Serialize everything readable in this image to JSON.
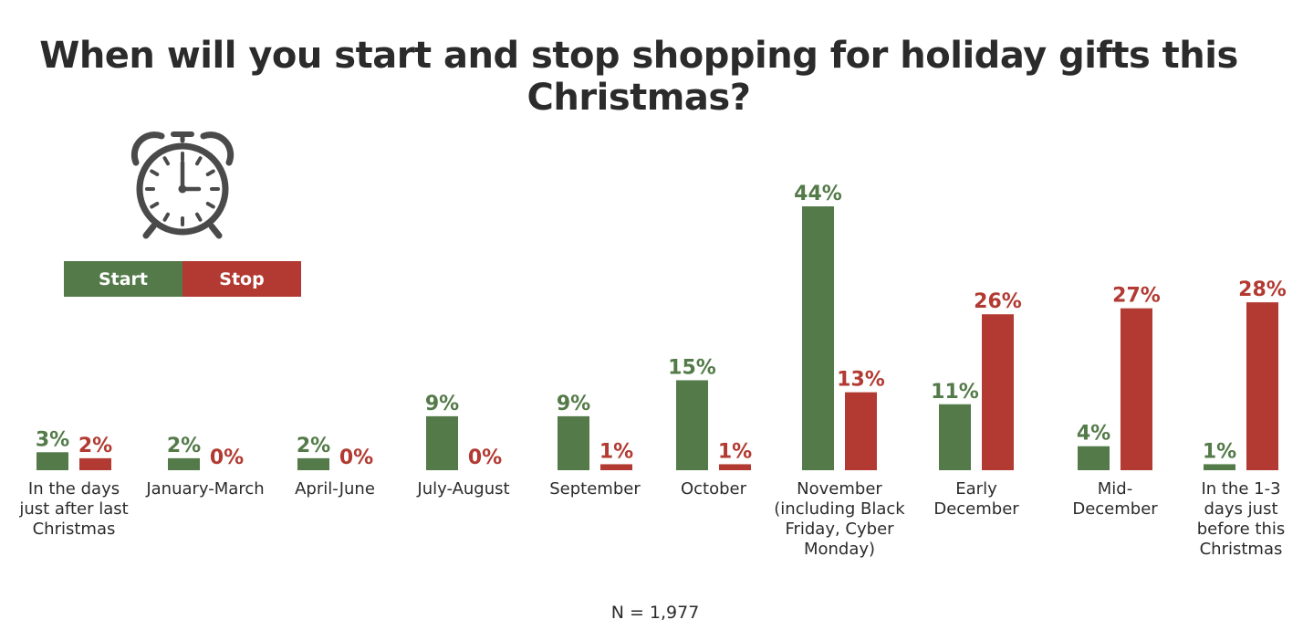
{
  "title": "When will you start and stop shopping for holiday gifts this Christmas?",
  "legend": [
    {
      "label": "Start",
      "color": "#537a48"
    },
    {
      "label": "Stop",
      "color": "#b23a32"
    }
  ],
  "footnote": "N = 1,977",
  "clock_icon": "alarm-clock-icon",
  "chart_data": {
    "type": "bar",
    "categories": [
      "In the days just after last Christmas",
      "January-March",
      "April-June",
      "July-August",
      "September",
      "October",
      "November (including Black Friday, Cyber Monday)",
      "Early December",
      "Mid-December",
      "In the 1-3 days just before this Christmas"
    ],
    "category_lines": [
      [
        "In the days",
        "just after last",
        "Christmas"
      ],
      [
        "January-March"
      ],
      [
        "April-June"
      ],
      [
        "July-August"
      ],
      [
        "September"
      ],
      [
        "October"
      ],
      [
        "November",
        "(including Black",
        "Friday, Cyber",
        "Monday)"
      ],
      [
        "Early",
        "December"
      ],
      [
        "Mid-",
        "December"
      ],
      [
        "In the 1-3",
        "days just",
        "before this",
        "Christmas"
      ]
    ],
    "series": [
      {
        "name": "Start",
        "color": "#537a48",
        "values": [
          3,
          2,
          2,
          9,
          9,
          15,
          44,
          11,
          4,
          1
        ],
        "labels": [
          "3%",
          "2%",
          "2%",
          "9%",
          "9%",
          "15%",
          "44%",
          "11%",
          "4%",
          "1%"
        ]
      },
      {
        "name": "Stop",
        "color": "#b23a32",
        "values": [
          2,
          0,
          0,
          0,
          1,
          1,
          13,
          26,
          27,
          28
        ],
        "labels": [
          "2%",
          "0%",
          "0%",
          "0%",
          "1%",
          "1%",
          "13%",
          "26%",
          "27%",
          "28%"
        ]
      }
    ],
    "unit": "%",
    "ylim": [
      0,
      44
    ],
    "grid": false
  }
}
